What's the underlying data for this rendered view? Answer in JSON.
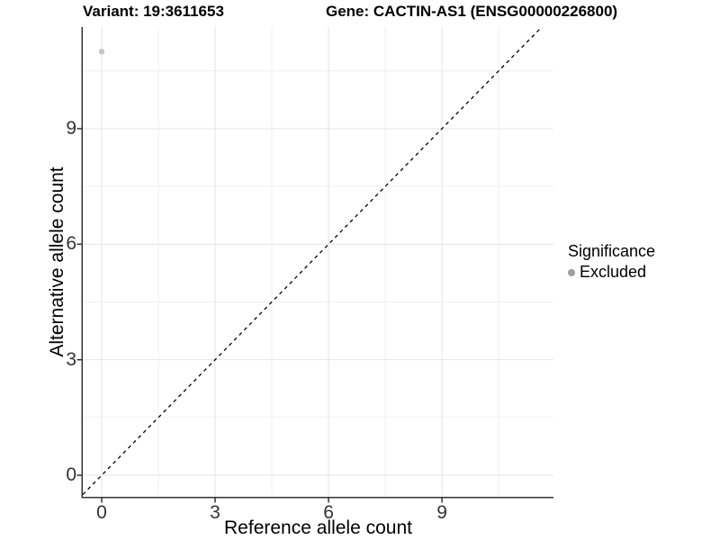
{
  "header": {
    "variant_title": "Variant: 19:3611653",
    "gene_title": "Gene: CACTIN-AS1 (ENSG00000226800)"
  },
  "chart_data": {
    "type": "scatter",
    "title": "Variant: 19:3611653 / Gene: CACTIN-AS1 (ENSG00000226800)",
    "xlabel": "Reference allele count",
    "ylabel": "Alternative allele count",
    "x_axis": {
      "ticks": [
        0,
        3,
        6,
        9
      ],
      "minor_ticks": [
        1.5,
        4.5,
        7.5,
        10.5
      ],
      "range": [
        -0.5,
        11.95
      ]
    },
    "y_axis": {
      "ticks": [
        0,
        3,
        6,
        9
      ],
      "minor_ticks": [
        1.5,
        4.5,
        7.5,
        10.5
      ],
      "range": [
        -0.56,
        11.64
      ]
    },
    "series": [
      {
        "name": "Excluded",
        "color": "#c6c6c6",
        "points": [
          {
            "x": 0,
            "y": 11
          }
        ]
      }
    ],
    "reference_line": {
      "type": "identity y=x",
      "style": "dashed",
      "color": "#000000"
    },
    "grid": "on",
    "legend_position": "right"
  },
  "legend": {
    "title": "Significance",
    "items": [
      {
        "label": "Excluded",
        "swatch_color": "#9f9f9f"
      }
    ]
  },
  "colors": {
    "grid_major": "#e4e4e4",
    "grid_minor": "#f0f0f0",
    "axis_line": "#333333",
    "tick_text": "#333333",
    "point": "#c6c6c6",
    "legend_dot": "#9f9f9f"
  }
}
